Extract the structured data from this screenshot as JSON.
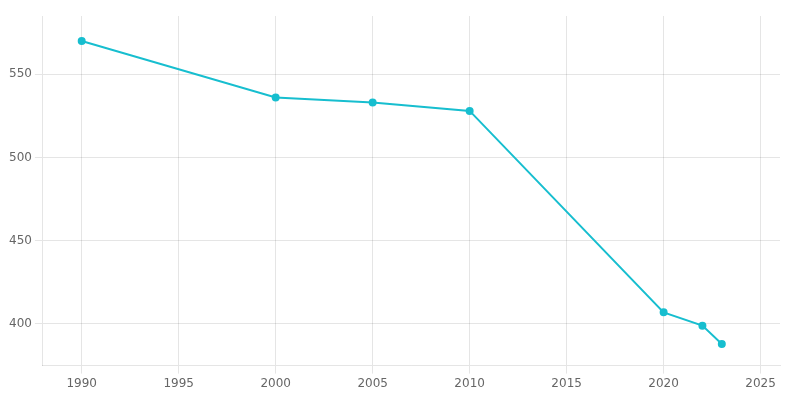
{
  "chart_data": {
    "type": "line",
    "x": [
      1990,
      2000,
      2005,
      2010,
      2020,
      2022,
      2023
    ],
    "values": [
      570,
      536,
      533,
      528,
      407,
      399,
      388
    ],
    "color": "#17BECF",
    "marker": "circle",
    "xlim": [
      1988,
      2026
    ],
    "ylim": [
      375,
      585
    ],
    "xticks": [
      1990,
      1995,
      2000,
      2005,
      2010,
      2015,
      2020,
      2025
    ],
    "yticks": [
      400,
      450,
      500,
      550
    ],
    "grid": true
  }
}
